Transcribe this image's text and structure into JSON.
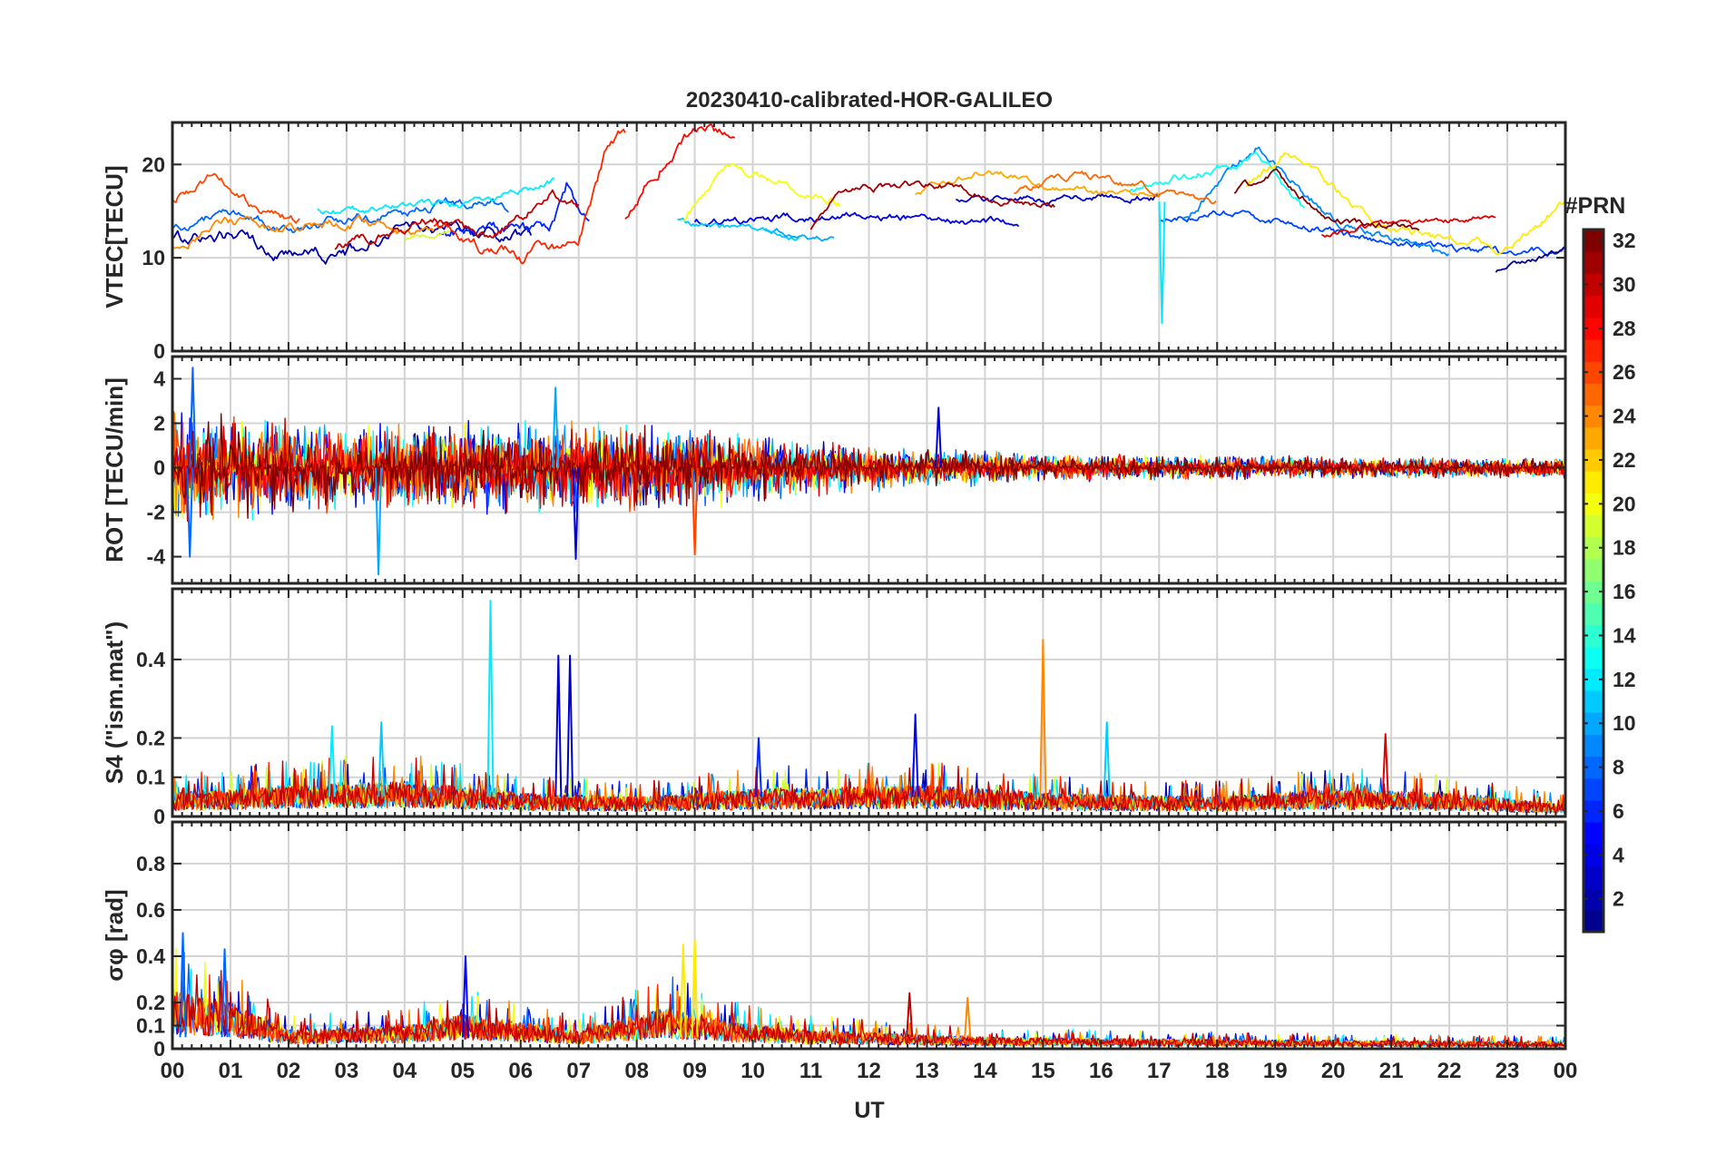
{
  "chart_data": {
    "type": "line",
    "title": "20230410-calibrated-HOR-GALILEO",
    "xlabel": "UT",
    "xlim": [
      0,
      24
    ],
    "x_tick_labels": [
      "00",
      "01",
      "02",
      "03",
      "04",
      "05",
      "06",
      "07",
      "08",
      "09",
      "10",
      "11",
      "12",
      "13",
      "14",
      "15",
      "16",
      "17",
      "18",
      "19",
      "20",
      "21",
      "22",
      "23",
      "00"
    ],
    "colorbar": {
      "label": "#PRN",
      "range": [
        1,
        32
      ],
      "ticks": [
        2,
        4,
        6,
        8,
        10,
        12,
        14,
        16,
        18,
        20,
        22,
        24,
        26,
        28,
        30,
        32
      ],
      "colormap": "jet",
      "colors": [
        "#00008f",
        "#0000ff",
        "#0080ff",
        "#00ffff",
        "#80ff80",
        "#ffff00",
        "#ff8000",
        "#ff0000",
        "#800000"
      ]
    },
    "panels": [
      {
        "ylabel": "VTEC[TECU]",
        "ylim": [
          0,
          24.5
        ],
        "yticks": [
          0,
          10,
          20
        ],
        "ytick_labels": [
          "0",
          "10",
          "20"
        ],
        "series": [
          {
            "prn": 2,
            "start": 0.0,
            "end": 6.2,
            "base": [
              [
                0,
                12
              ],
              [
                1,
                12.5
              ],
              [
                2,
                10
              ],
              [
                3,
                10.5
              ],
              [
                4,
                13
              ],
              [
                5,
                13
              ],
              [
                6,
                12
              ]
            ],
            "noise": 1.0
          },
          {
            "prn": 6,
            "start": 4.6,
            "end": 7.2,
            "base": [
              [
                4.6,
                13
              ],
              [
                6.5,
                12.5
              ],
              [
                6.8,
                18
              ],
              [
                7.2,
                13
              ]
            ],
            "noise": 1.0
          },
          {
            "prn": 4,
            "start": 9.0,
            "end": 14.6,
            "base": [
              [
                9,
                14
              ],
              [
                12,
                14.5
              ],
              [
                14.6,
                13.5
              ]
            ],
            "noise": 0.6
          },
          {
            "prn": 3,
            "start": 13.5,
            "end": 17.0,
            "base": [
              [
                13.5,
                16
              ],
              [
                15,
                16
              ],
              [
                17,
                16.5
              ]
            ],
            "noise": 0.6
          },
          {
            "prn": 7,
            "start": 17.0,
            "end": 24.0,
            "base": [
              [
                17,
                14
              ],
              [
                18,
                15
              ],
              [
                19,
                14
              ],
              [
                21,
                11.5
              ],
              [
                23,
                10.5
              ],
              [
                24,
                11
              ]
            ],
            "noise": 0.6
          },
          {
            "prn": 1,
            "start": 22.8,
            "end": 24.0,
            "base": [
              [
                22.8,
                8.5
              ],
              [
                24,
                11
              ]
            ],
            "noise": 0.4
          },
          {
            "prn": 8,
            "start": 0.0,
            "end": 5.8,
            "base": [
              [
                0,
                13
              ],
              [
                1,
                15
              ],
              [
                2,
                13
              ],
              [
                3,
                14
              ],
              [
                4,
                15
              ],
              [
                5,
                16
              ],
              [
                5.8,
                15.5
              ]
            ],
            "noise": 0.8
          },
          {
            "prn": 9,
            "start": 17.4,
            "end": 22.0,
            "base": [
              [
                17.4,
                14
              ],
              [
                18.7,
                22
              ],
              [
                20,
                14
              ],
              [
                21,
                12
              ],
              [
                22,
                10
              ]
            ],
            "noise": 0.7
          },
          {
            "prn": 10,
            "start": 10.2,
            "end": 11.4,
            "base": [
              [
                10.2,
                13
              ],
              [
                11.4,
                12
              ]
            ],
            "noise": 0.5
          },
          {
            "prn": 11,
            "start": 8.7,
            "end": 10.8,
            "base": [
              [
                8.7,
                14
              ],
              [
                10.8,
                12
              ]
            ],
            "noise": 0.5
          },
          {
            "prn": 12,
            "start": 2.5,
            "end": 6.6,
            "base": [
              [
                2.5,
                15
              ],
              [
                4,
                15.5
              ],
              [
                5.5,
                16
              ],
              [
                6.6,
                18
              ]
            ],
            "noise": 0.6
          },
          {
            "prn": 13,
            "start": 16.5,
            "end": 19.5,
            "base": [
              [
                16.5,
                17
              ],
              [
                18.7,
                21
              ],
              [
                19.5,
                15
              ]
            ],
            "noise": 0.7
          },
          {
            "prn": 19,
            "start": 4.0,
            "end": 4.8,
            "base": [
              [
                4,
                12
              ],
              [
                4.8,
                13
              ]
            ],
            "noise": 0.4
          },
          {
            "prn": 20,
            "start": 8.8,
            "end": 11.5,
            "base": [
              [
                8.8,
                14
              ],
              [
                9.6,
                20
              ],
              [
                11.5,
                16
              ]
            ],
            "noise": 0.7
          },
          {
            "prn": 21,
            "start": 18.5,
            "end": 24.0,
            "base": [
              [
                18.5,
                18
              ],
              [
                19.2,
                21.5
              ],
              [
                21,
                13
              ],
              [
                23,
                11
              ],
              [
                24,
                16
              ]
            ],
            "noise": 0.7
          },
          {
            "prn": 23,
            "start": 12.8,
            "end": 17.0,
            "base": [
              [
                12.8,
                17
              ],
              [
                14,
                19.5
              ],
              [
                15.5,
                17
              ],
              [
                17,
                17
              ]
            ],
            "noise": 0.6
          },
          {
            "prn": 24,
            "start": 0.0,
            "end": 4.5,
            "base": [
              [
                0,
                11
              ],
              [
                0.8,
                14
              ],
              [
                2,
                13
              ],
              [
                3,
                14
              ],
              [
                4,
                13
              ],
              [
                4.5,
                12.5
              ]
            ],
            "noise": 0.8
          },
          {
            "prn": 25,
            "start": 14.5,
            "end": 18.0,
            "base": [
              [
                14.5,
                17
              ],
              [
                15.5,
                19
              ],
              [
                18,
                16
              ]
            ],
            "noise": 0.6
          },
          {
            "prn": 26,
            "start": 0.0,
            "end": 2.2,
            "base": [
              [
                0,
                16
              ],
              [
                0.7,
                19
              ],
              [
                1.5,
                15
              ],
              [
                2.2,
                14
              ]
            ],
            "noise": 0.8
          },
          {
            "prn": 27,
            "start": 4.5,
            "end": 7.8,
            "base": [
              [
                4.5,
                13
              ],
              [
                6,
                10
              ],
              [
                7,
                12
              ],
              [
                7.5,
                22
              ],
              [
                7.8,
                23
              ]
            ],
            "noise": 1.0
          },
          {
            "prn": 28,
            "start": 7.8,
            "end": 9.7,
            "base": [
              [
                7.8,
                14
              ],
              [
                8.5,
                21
              ],
              [
                9.2,
                24
              ],
              [
                9.7,
                22
              ]
            ],
            "noise": 1.0
          },
          {
            "prn": 29,
            "start": 19.8,
            "end": 22.8,
            "base": [
              [
                19.8,
                12.5
              ],
              [
                21,
                13.5
              ],
              [
                22.8,
                14.5
              ]
            ],
            "noise": 0.5
          },
          {
            "prn": 30,
            "start": 2.8,
            "end": 7.0,
            "base": [
              [
                2.8,
                11
              ],
              [
                4.5,
                14
              ],
              [
                5.5,
                12
              ],
              [
                6.5,
                17
              ],
              [
                7,
                16
              ]
            ],
            "noise": 0.8
          },
          {
            "prn": 31,
            "start": 11.0,
            "end": 15.2,
            "base": [
              [
                11,
                13
              ],
              [
                11.5,
                17
              ],
              [
                13,
                18
              ],
              [
                15.2,
                15.5
              ]
            ],
            "noise": 0.6
          },
          {
            "prn": 32,
            "start": 18.3,
            "end": 21.5,
            "base": [
              [
                18.3,
                17
              ],
              [
                19,
                19
              ],
              [
                20,
                14
              ],
              [
                21.5,
                13
              ]
            ],
            "noise": 0.6
          }
        ],
        "spikes": [
          {
            "prn": 12,
            "x": 17.05,
            "y": 3.0
          }
        ]
      },
      {
        "ylabel": "ROT [TECU/min]",
        "ylim": [
          -5.2,
          5.0
        ],
        "yticks": [
          -4,
          -2,
          0,
          2,
          4
        ],
        "ytick_labels": [
          "-4",
          "-2",
          "0",
          "2",
          "4"
        ],
        "envelope": [
          [
            0,
            3.0
          ],
          [
            3,
            2.0
          ],
          [
            5,
            2.2
          ],
          [
            7,
            2.2
          ],
          [
            9,
            2.0
          ],
          [
            11,
            1.4
          ],
          [
            13,
            1.0
          ],
          [
            15,
            0.7
          ],
          [
            18,
            0.6
          ],
          [
            22,
            0.5
          ],
          [
            24,
            0.5
          ]
        ],
        "prns": [
          2,
          5,
          8,
          10,
          13,
          20,
          24,
          26,
          28,
          30,
          32
        ],
        "spikes": [
          {
            "prn": 8,
            "x": 0.35,
            "y": 4.5
          },
          {
            "prn": 8,
            "x": 0.3,
            "y": -4.0
          },
          {
            "prn": 10,
            "x": 3.55,
            "y": -4.8
          },
          {
            "prn": 10,
            "x": 6.6,
            "y": 3.6
          },
          {
            "prn": 4,
            "x": 6.95,
            "y": -4.1
          },
          {
            "prn": 26,
            "x": 9.0,
            "y": -3.9
          },
          {
            "prn": 4,
            "x": 13.2,
            "y": 2.7
          }
        ]
      },
      {
        "ylabel": "S4 (\"ism.mat\")",
        "ylim": [
          0,
          0.58
        ],
        "yticks": [
          0,
          0.1,
          0.2,
          0.4
        ],
        "ytick_labels": [
          "0",
          "0.1",
          "0.2",
          "0.4"
        ],
        "envelope": [
          [
            0,
            0.06
          ],
          [
            2,
            0.08
          ],
          [
            4,
            0.09
          ],
          [
            6,
            0.06
          ],
          [
            8,
            0.05
          ],
          [
            10,
            0.07
          ],
          [
            13,
            0.08
          ],
          [
            15,
            0.06
          ],
          [
            18,
            0.05
          ],
          [
            20,
            0.07
          ],
          [
            22,
            0.06
          ],
          [
            24,
            0.03
          ]
        ],
        "prns": [
          2,
          6,
          9,
          12,
          19,
          24,
          27,
          30
        ],
        "spikes": [
          {
            "prn": 12,
            "x": 5.48,
            "y": 0.55
          },
          {
            "prn": 3,
            "x": 6.65,
            "y": 0.41
          },
          {
            "prn": 3,
            "x": 6.85,
            "y": 0.41
          },
          {
            "prn": 24,
            "x": 15.0,
            "y": 0.45
          },
          {
            "prn": 12,
            "x": 2.75,
            "y": 0.23
          },
          {
            "prn": 11,
            "x": 3.6,
            "y": 0.24
          },
          {
            "prn": 5,
            "x": 12.8,
            "y": 0.26
          },
          {
            "prn": 11,
            "x": 16.1,
            "y": 0.24
          },
          {
            "prn": 29,
            "x": 20.9,
            "y": 0.21
          },
          {
            "prn": 6,
            "x": 10.1,
            "y": 0.2
          }
        ]
      },
      {
        "ylabel": "σφ [rad]",
        "ylim": [
          0,
          0.98
        ],
        "yticks": [
          0,
          0.1,
          0.2,
          0.4,
          0.6,
          0.8
        ],
        "ytick_labels": [
          "0",
          "0.1",
          "0.2",
          "0.4",
          "0.6",
          "0.8"
        ],
        "envelope": [
          [
            0,
            0.25
          ],
          [
            1,
            0.2
          ],
          [
            2,
            0.08
          ],
          [
            4,
            0.1
          ],
          [
            5,
            0.15
          ],
          [
            7,
            0.08
          ],
          [
            8.5,
            0.18
          ],
          [
            9.5,
            0.12
          ],
          [
            11,
            0.08
          ],
          [
            14,
            0.05
          ],
          [
            18,
            0.04
          ],
          [
            24,
            0.03
          ]
        ],
        "prns": [
          4,
          8,
          12,
          20,
          24,
          27,
          30
        ],
        "spikes": [
          {
            "prn": 8,
            "x": 0.18,
            "y": 0.5
          },
          {
            "prn": 8,
            "x": 0.9,
            "y": 0.43
          },
          {
            "prn": 5,
            "x": 5.05,
            "y": 0.4
          },
          {
            "prn": 21,
            "x": 8.8,
            "y": 0.45
          },
          {
            "prn": 21,
            "x": 9.0,
            "y": 0.47
          },
          {
            "prn": 30,
            "x": 12.7,
            "y": 0.24
          },
          {
            "prn": 24,
            "x": 13.7,
            "y": 0.22
          }
        ]
      }
    ]
  }
}
